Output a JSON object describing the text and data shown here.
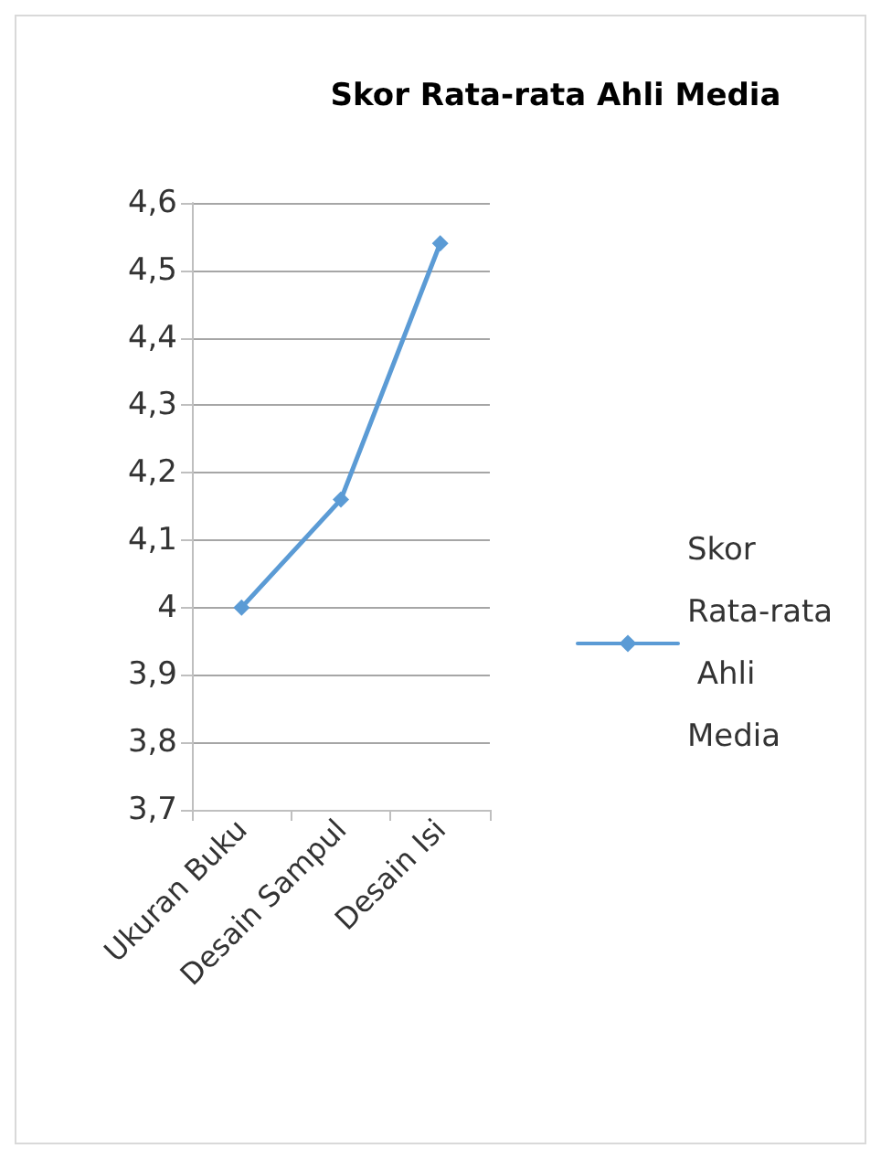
{
  "chart_data": {
    "type": "line",
    "title": "Skor Rata-rata Ahli Media",
    "categories": [
      "Ukuran Buku",
      "Desain Sampul",
      "Desain Isi"
    ],
    "series": [
      {
        "name": "Skor Rata-rata Ahli Media",
        "color": "#5b9bd5",
        "values": [
          4,
          4.16,
          4.54
        ]
      }
    ],
    "ylim": [
      3.7,
      4.6
    ],
    "yticks": [
      {
        "value": 3.7,
        "label": "3,7"
      },
      {
        "value": 3.8,
        "label": "3,8"
      },
      {
        "value": 3.9,
        "label": "3,9"
      },
      4,
      {
        "value": 4.1,
        "label": "4,1"
      },
      {
        "value": 4.2,
        "label": "4,2"
      },
      {
        "value": 4.3,
        "label": "4,3"
      },
      {
        "value": 4.4,
        "label": "4,4"
      },
      {
        "value": 4.5,
        "label": "4,5"
      },
      {
        "value": 4.6,
        "label": "4,6"
      }
    ],
    "grid": "y",
    "legend": "right",
    "marker": "diamond",
    "line_style": "solid"
  }
}
